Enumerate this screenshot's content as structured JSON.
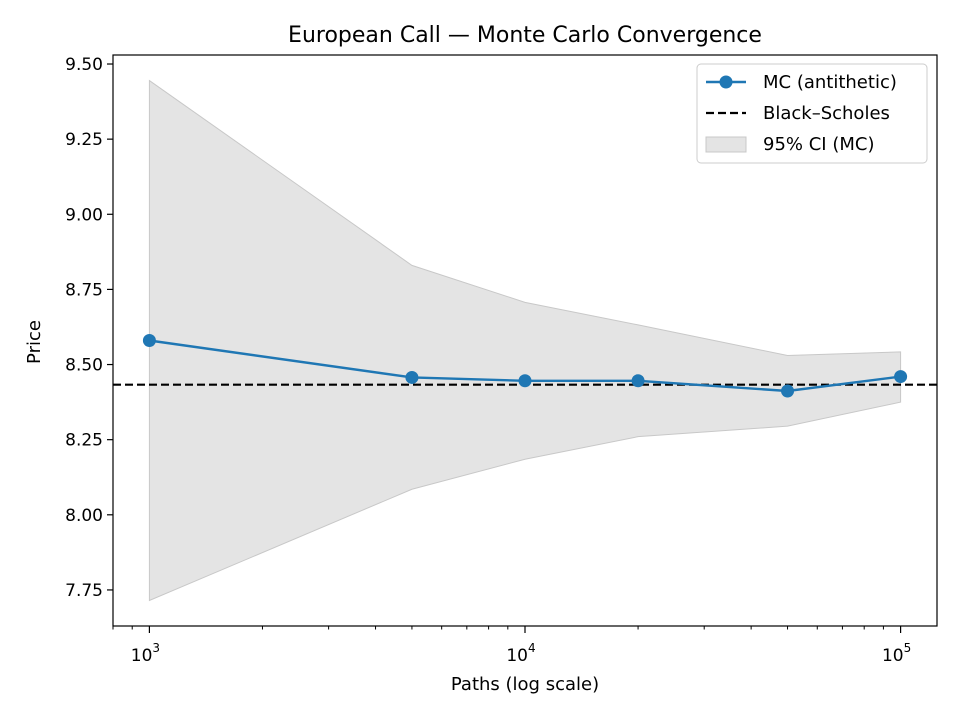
{
  "chart_data": {
    "type": "line",
    "title": "European Call — Monte Carlo Convergence",
    "xlabel": "Paths (log scale)",
    "ylabel": "Price",
    "xscale": "log",
    "xlim": [
      800,
      125000
    ],
    "ylim": [
      7.63,
      9.53
    ],
    "grid": false,
    "legend_position": "top-right",
    "y_ticks": [
      "7.75",
      "8.00",
      "8.25",
      "8.50",
      "8.75",
      "9.00",
      "9.25",
      "9.50"
    ],
    "y_tick_values": [
      7.75,
      8.0,
      8.25,
      8.5,
      8.75,
      9.0,
      9.25,
      9.5
    ],
    "x_major_ticks": [
      {
        "value": 1000,
        "base": "10",
        "exp": "3"
      },
      {
        "value": 10000,
        "base": "10",
        "exp": "4"
      },
      {
        "value": 100000,
        "base": "10",
        "exp": "5"
      }
    ],
    "x": [
      1000,
      5000,
      10000,
      20000,
      50000,
      100000
    ],
    "series": [
      {
        "name": "MC (antithetic)",
        "kind": "line-marker",
        "color": "#1f77b4",
        "values": [
          8.58,
          8.457,
          8.446,
          8.446,
          8.412,
          8.46
        ]
      },
      {
        "name": "Black–Scholes",
        "kind": "hline",
        "color": "#000000",
        "value": 8.433
      },
      {
        "name": "95% CI (MC)",
        "kind": "band",
        "color": "#d9d9d9",
        "lower": [
          7.715,
          8.085,
          8.185,
          8.26,
          8.295,
          8.375
        ],
        "upper": [
          9.445,
          8.83,
          8.707,
          8.632,
          8.53,
          8.542
        ]
      }
    ]
  }
}
